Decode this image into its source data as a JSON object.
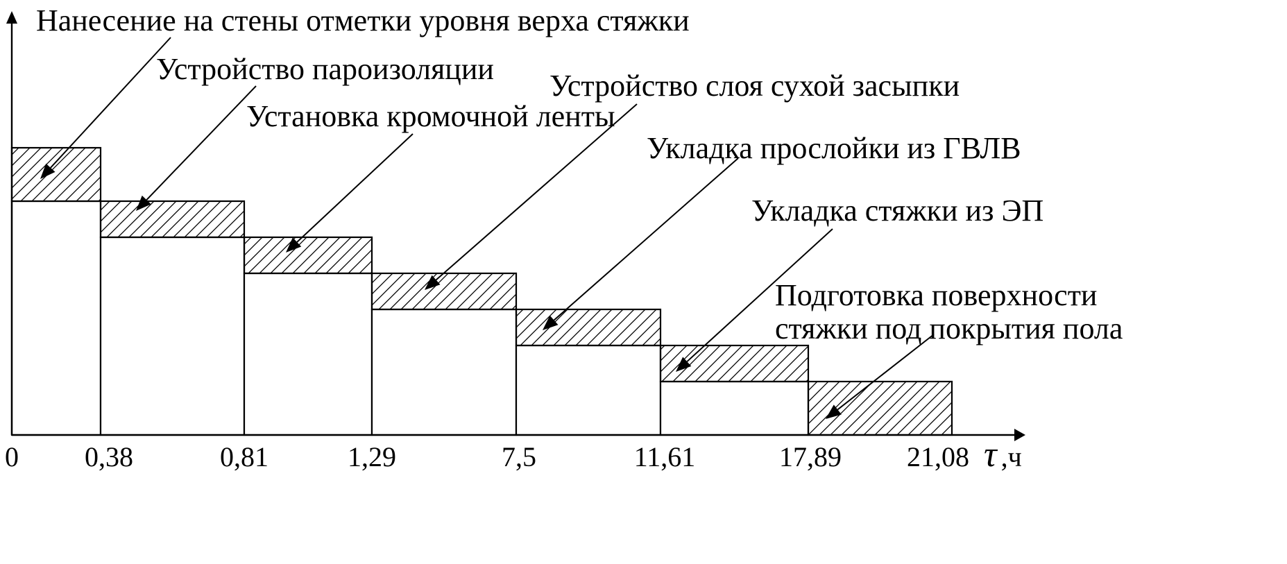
{
  "chart_data": {
    "type": "gantt",
    "title": "",
    "xlabel": "ч",
    "xlabel_symbol": "τ",
    "ylabel": "",
    "ticks": [
      "0",
      "0,38",
      "0,81",
      "1,29",
      "7,5",
      "11,61",
      "17,89",
      "21,08"
    ],
    "tick_values": [
      0,
      0.38,
      0.81,
      1.29,
      7.5,
      11.61,
      17.89,
      21.08
    ],
    "tasks": [
      {
        "name": "Нанесение на стены отметки уровня верха стяжки",
        "start": 0,
        "end": 0.38,
        "level": 7
      },
      {
        "name": "Устройство пароизоляции",
        "start": 0.38,
        "end": 0.81,
        "level": 6
      },
      {
        "name": "Установка кромочной ленты",
        "start": 0.81,
        "end": 1.29,
        "level": 5
      },
      {
        "name": "Устройство слоя сухой засыпки",
        "start": 1.29,
        "end": 7.5,
        "level": 4
      },
      {
        "name": "Укладка прослойки из ГВЛВ",
        "start": 7.5,
        "end": 11.61,
        "level": 3
      },
      {
        "name": "Укладка стяжки из ЭП",
        "start": 11.61,
        "end": 17.89,
        "level": 2
      },
      {
        "name": "Подготовка поверхности стяжки под покрытия пола",
        "name_lines": [
          "Подготовка поверхности",
          "стяжки под покрытия пола"
        ],
        "start": 17.89,
        "end": 21.08,
        "level": 1
      }
    ],
    "fill_pattern": "diagonal-hatch",
    "colors": {
      "stroke": "#000000",
      "background": "#ffffff"
    }
  }
}
